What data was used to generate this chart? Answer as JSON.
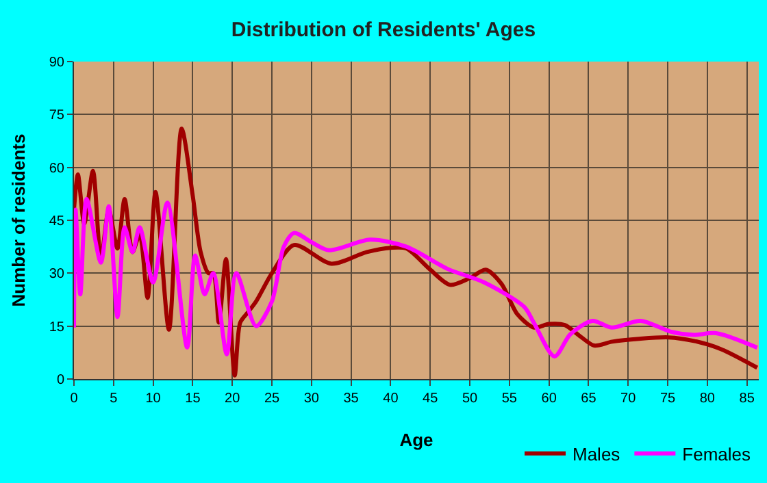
{
  "chart_data": {
    "type": "line",
    "title": "Distribution of Residents' Ages",
    "xlabel": "Age",
    "ylabel": "Number of residents",
    "xlim": [
      0,
      86.5
    ],
    "xticks": [
      0,
      5,
      10,
      15,
      20,
      25,
      30,
      35,
      40,
      45,
      50,
      55,
      60,
      65,
      70,
      75,
      80,
      85
    ],
    "ylim": [
      0,
      90
    ],
    "yticks": [
      0,
      15,
      30,
      45,
      60,
      75,
      90
    ],
    "grid": true,
    "legend": "bottom right",
    "marker": "none",
    "line_style": "solid",
    "series": [
      {
        "name": "Males",
        "color": "#a00000",
        "x": [
          0,
          0.5,
          1.3,
          2.4,
          3.4,
          4.4,
          5.5,
          6.4,
          7.4,
          8.3,
          9.3,
          10.3,
          12,
          13.6,
          15,
          16,
          17,
          17.6,
          18.3,
          19.2,
          20.3,
          21,
          22,
          23,
          25,
          27.8,
          32.5,
          37,
          40,
          42,
          45,
          47.5,
          50,
          52,
          54,
          56,
          58.1,
          60,
          62,
          64,
          65.7,
          68,
          71.4,
          75.1,
          78.3,
          81.7,
          86.3
        ],
        "values": [
          48,
          58,
          44,
          59,
          34,
          48,
          37,
          51,
          36,
          41,
          23,
          53,
          14,
          71,
          52,
          36,
          30,
          30,
          16,
          34,
          1,
          16,
          19,
          22,
          30,
          38,
          32.7,
          36,
          37.2,
          37,
          31,
          26.7,
          28.6,
          31,
          27,
          18.4,
          14.6,
          15.6,
          15.3,
          12,
          9.5,
          10.6,
          11.4,
          11.8,
          10.8,
          8.5,
          3.2
        ]
      },
      {
        "name": "Females",
        "color": "#ff00ff",
        "x": [
          0,
          0.2,
          0.8,
          1.6,
          3.4,
          4.4,
          5.5,
          6.4,
          7.4,
          8.3,
          10,
          11.8,
          14.3,
          15.3,
          16.5,
          17.6,
          19.3,
          20.5,
          23,
          25,
          26.5,
          27.8,
          30,
          32.2,
          37.4,
          42,
          47.2,
          51.8,
          56.9,
          58.1,
          60.7,
          62.7,
          65.5,
          67.9,
          71.6,
          75.4,
          78.3,
          81.1,
          86.3
        ],
        "values": [
          14.6,
          48,
          24,
          51,
          33,
          49,
          17.6,
          43,
          36,
          43,
          27.4,
          50,
          8.9,
          35,
          24,
          30,
          7,
          30,
          15,
          22,
          37.5,
          41.4,
          38.8,
          36.5,
          39.5,
          37.5,
          31.2,
          27.4,
          20.4,
          15.9,
          6.4,
          12.7,
          16.5,
          14.6,
          16.5,
          13.4,
          12.5,
          13,
          8.9
        ]
      }
    ]
  }
}
